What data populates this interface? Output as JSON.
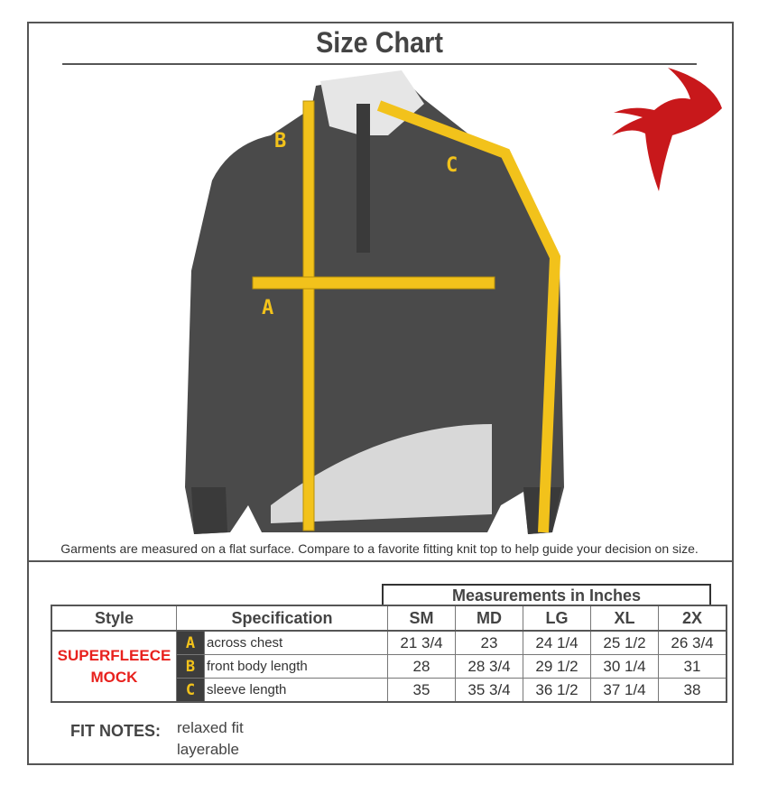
{
  "title": "Size Chart",
  "caption": "Garments are measured on a flat surface. Compare to a favorite fitting knit top to help guide your decision on size.",
  "image_labels": {
    "a": "A",
    "b": "B",
    "c": "C"
  },
  "colors": {
    "accent_red": "#e8211d",
    "tape_yellow": "#f2c21b",
    "garment_gray": "#4a4a4a"
  },
  "table": {
    "group_header": "Measurements in Inches",
    "headers": {
      "style": "Style",
      "specification": "Specification",
      "sizes": [
        "SM",
        "MD",
        "LG",
        "XL",
        "2X"
      ]
    },
    "style_lines": [
      "SUPERFLEECE",
      "MOCK"
    ],
    "rows": [
      {
        "letter": "A",
        "spec": "across chest",
        "values": [
          "21 3/4",
          "23",
          "24 1/4",
          "25 1/2",
          "26 3/4"
        ]
      },
      {
        "letter": "B",
        "spec": "front body length",
        "values": [
          "28",
          "28 3/4",
          "29 1/2",
          "30 1/4",
          "31"
        ]
      },
      {
        "letter": "C",
        "spec": "sleeve length",
        "values": [
          "35",
          "35 3/4",
          "36 1/2",
          "37 1/4",
          "38"
        ]
      }
    ]
  },
  "fit_notes": {
    "label": "FIT NOTES:",
    "items": [
      "relaxed fit",
      "layerable"
    ]
  }
}
